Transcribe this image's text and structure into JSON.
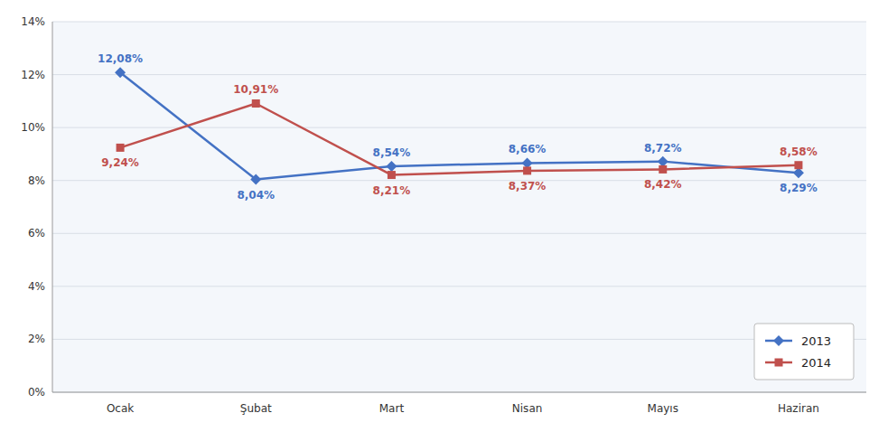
{
  "chart_data": {
    "type": "line",
    "categories": [
      "Ocak",
      "Şubat",
      "Mart",
      "Nisan",
      "Mayıs",
      "Haziran"
    ],
    "series": [
      {
        "name": "2013",
        "color": "#4472C4",
        "marker": "diamond",
        "values": [
          12.08,
          8.04,
          8.54,
          8.66,
          8.72,
          8.29
        ],
        "value_labels": [
          "12,08%",
          "8,04%",
          "8,54%",
          "8,66%",
          "8,72%",
          "8,29%"
        ]
      },
      {
        "name": "2014",
        "color": "#C0504D",
        "marker": "square",
        "values": [
          9.24,
          10.91,
          8.21,
          8.37,
          8.42,
          8.58
        ],
        "value_labels": [
          "9,24%",
          "10,91%",
          "8,21%",
          "8,37%",
          "8,42%",
          "8,58%"
        ]
      }
    ],
    "ylim": [
      0,
      14
    ],
    "yticks": [
      {
        "value": 0,
        "label": "0%"
      },
      {
        "value": 2,
        "label": "2%"
      },
      {
        "value": 4,
        "label": "4%"
      },
      {
        "value": 6,
        "label": "6%"
      },
      {
        "value": 8,
        "label": "8%"
      },
      {
        "value": 10,
        "label": "10%"
      },
      {
        "value": 12,
        "label": "12%"
      },
      {
        "value": 14,
        "label": "14%"
      }
    ],
    "grid": true,
    "legend": "lower right",
    "data_labels": true
  }
}
